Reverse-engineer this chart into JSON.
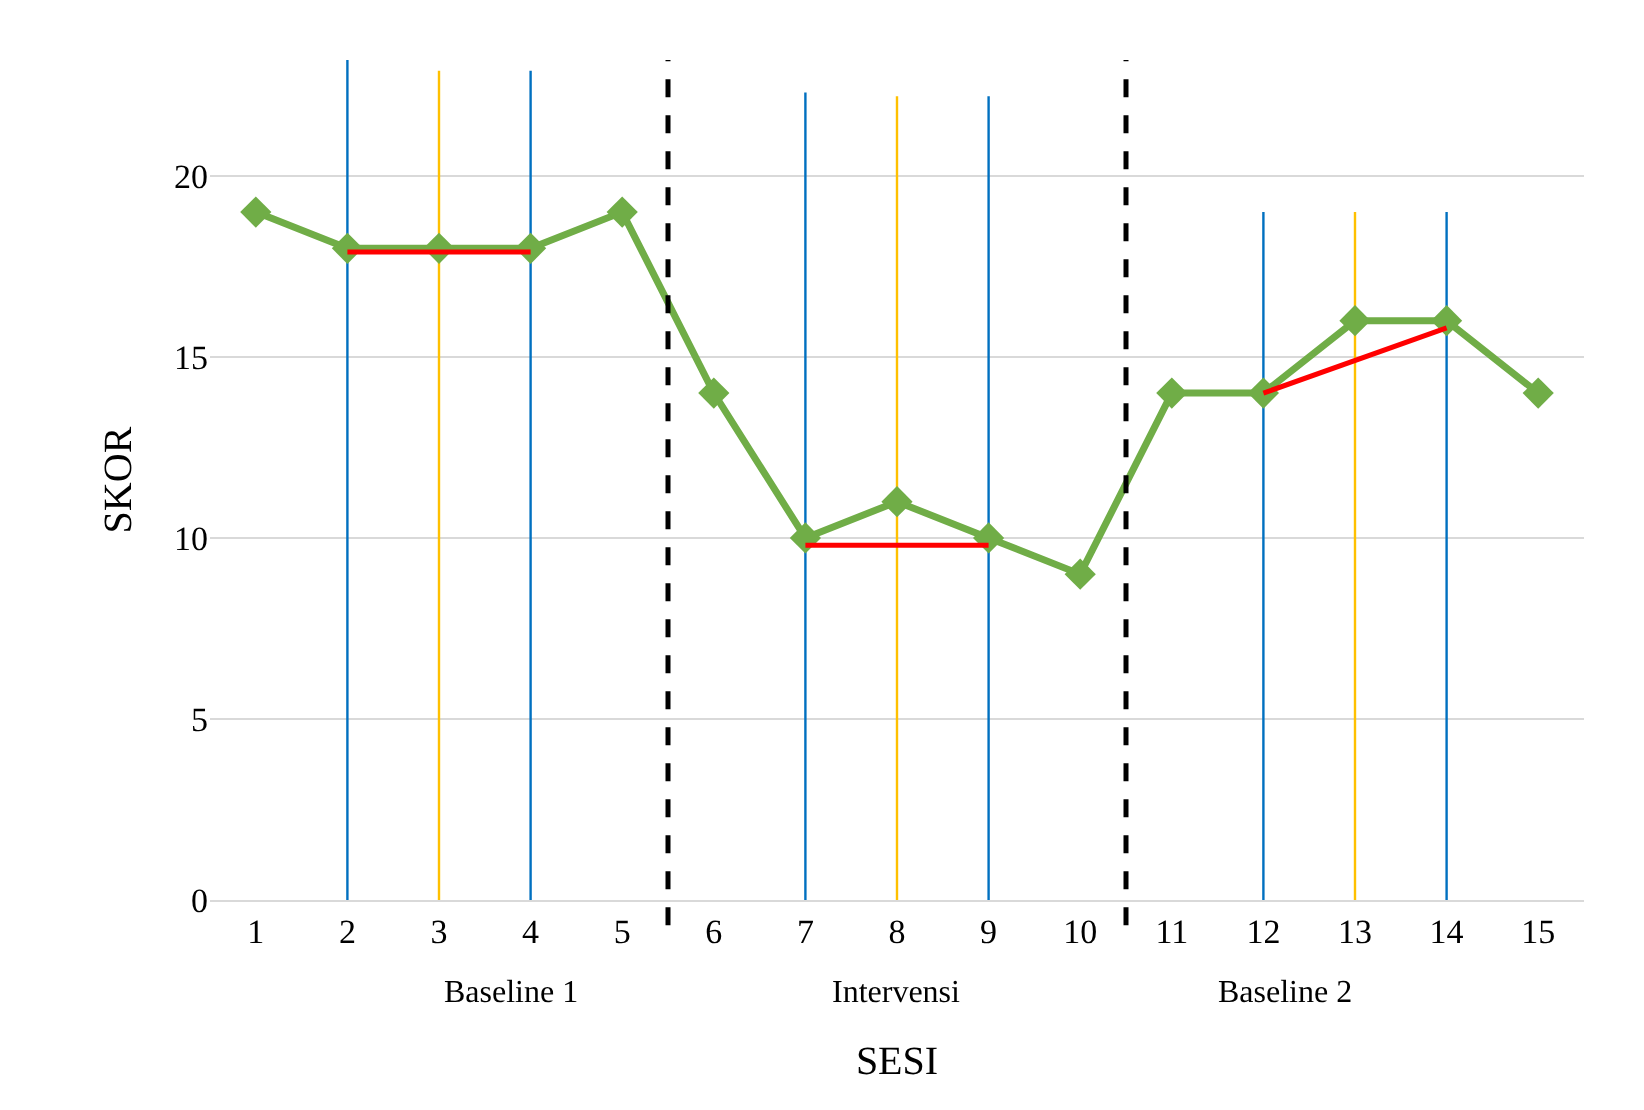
{
  "chart_data": {
    "type": "line",
    "xlabel": "SESI",
    "ylabel": "SKOR",
    "x": [
      1,
      2,
      3,
      4,
      5,
      6,
      7,
      8,
      9,
      10,
      11,
      12,
      13,
      14,
      15
    ],
    "xlim": [
      0.5,
      15.5
    ],
    "xticks": [
      1,
      2,
      3,
      4,
      5,
      6,
      7,
      8,
      9,
      10,
      11,
      12,
      13,
      14,
      15
    ],
    "ylim": [
      0,
      23.2
    ],
    "yticks": [
      0,
      5,
      10,
      15,
      20
    ],
    "grid": "y",
    "series": [
      {
        "type": "line",
        "color": "#0070c0",
        "x": [
          2,
          2
        ],
        "values": [
          0,
          23.2
        ],
        "marker": "none"
      },
      {
        "type": "line",
        "color": "#ffc000",
        "x": [
          3,
          3
        ],
        "values": [
          0,
          22.9
        ],
        "marker": "none"
      },
      {
        "type": "line",
        "color": "#0070c0",
        "x": [
          4,
          4
        ],
        "values": [
          0,
          22.9
        ],
        "marker": "none"
      },
      {
        "type": "line",
        "color": "#0070c0",
        "x": [
          7,
          7
        ],
        "values": [
          0,
          22.3
        ],
        "marker": "none"
      },
      {
        "type": "line",
        "color": "#ffc000",
        "x": [
          8,
          8
        ],
        "values": [
          0,
          22.2
        ],
        "marker": "none"
      },
      {
        "type": "line",
        "color": "#0070c0",
        "x": [
          9,
          9
        ],
        "values": [
          0,
          22.2
        ],
        "marker": "none"
      },
      {
        "type": "line",
        "color": "#0070c0",
        "x": [
          12,
          12
        ],
        "values": [
          0,
          19
        ],
        "marker": "none"
      },
      {
        "type": "line",
        "color": "#ffc000",
        "x": [
          13,
          13
        ],
        "values": [
          0,
          19
        ],
        "marker": "none"
      },
      {
        "type": "line",
        "color": "#0070c0",
        "x": [
          14,
          14
        ],
        "values": [
          0,
          19
        ],
        "marker": "none"
      },
      {
        "color": "#70ad47",
        "values": [
          19,
          18,
          18,
          18,
          19,
          14,
          10,
          11,
          10,
          9,
          14,
          14,
          16,
          16,
          14
        ],
        "marker": "diamond"
      },
      {
        "type": "line",
        "color": "#ff0000",
        "x": [
          2,
          4
        ],
        "values": [
          17.9,
          17.9
        ],
        "marker": "none"
      },
      {
        "type": "line",
        "color": "#ff0000",
        "x": [
          7,
          9
        ],
        "values": [
          9.8,
          9.8
        ],
        "marker": "none"
      },
      {
        "type": "line",
        "color": "#ff0000",
        "x": [
          12,
          14
        ],
        "values": [
          14,
          15.8
        ],
        "marker": "none"
      }
    ],
    "ref_lines": [
      {
        "axis": "x",
        "value": 5.5,
        "color": "#000000",
        "line_style": "dashed"
      },
      {
        "axis": "x",
        "value": 10.5,
        "color": "#000000",
        "line_style": "dashed"
      }
    ],
    "annotations": [
      "Baseline 1",
      "Intervensi",
      "Baseline 2"
    ]
  }
}
